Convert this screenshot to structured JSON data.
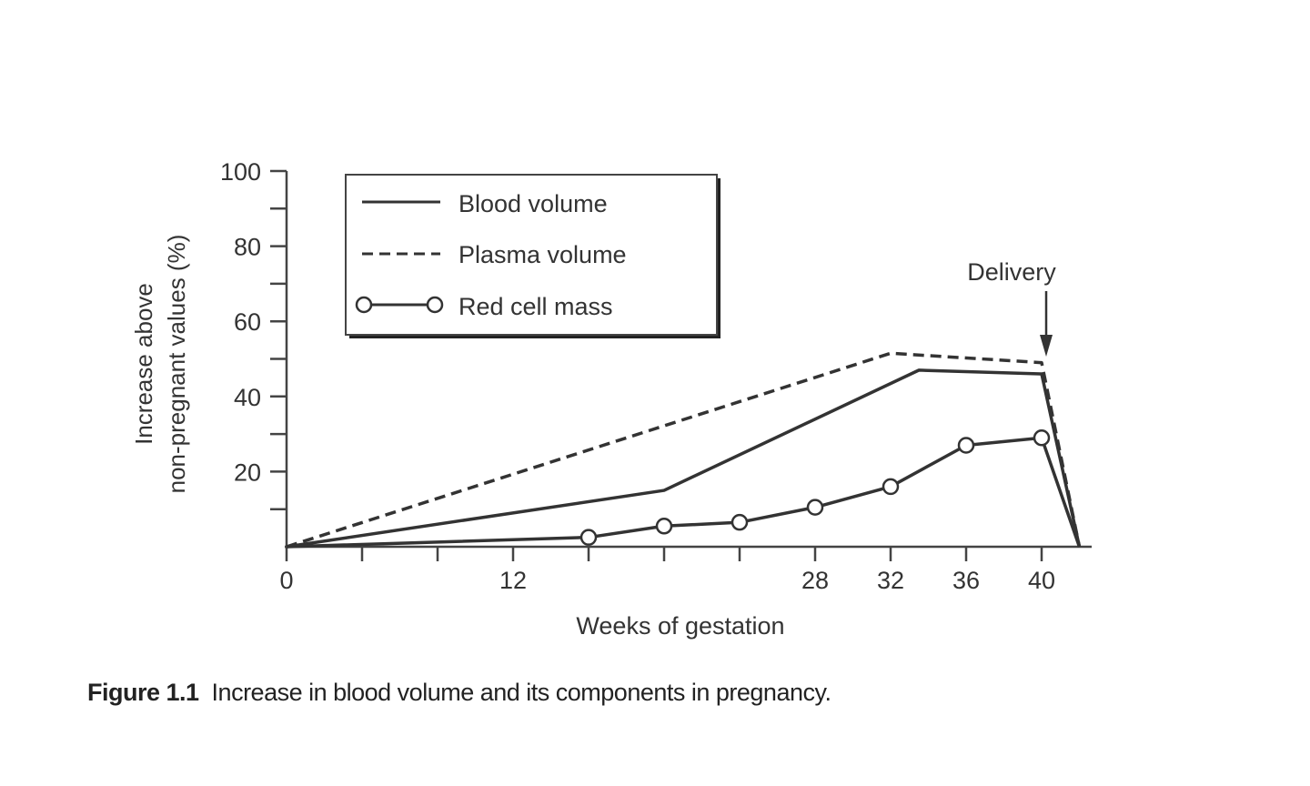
{
  "chart_data": {
    "type": "line",
    "xlabel": "Weeks of gestation",
    "ylabel_lines": [
      "Increase above",
      "non-pregnant values (%)"
    ],
    "xlim": [
      0,
      42
    ],
    "ylim": [
      0,
      100
    ],
    "x_tick_positions": [
      0,
      4,
      8,
      12,
      16,
      20,
      24,
      28,
      32,
      36,
      40
    ],
    "x_tick_labels": [
      "0",
      "12",
      "28",
      "32",
      "36",
      "40"
    ],
    "x_tick_label_values": [
      0,
      12,
      28,
      32,
      36,
      40
    ],
    "y_tick_positions": [
      10,
      20,
      30,
      40,
      50,
      60,
      70,
      80,
      90,
      100
    ],
    "y_tick_labels": [
      "20",
      "40",
      "60",
      "80",
      "100"
    ],
    "y_tick_label_values": [
      20,
      40,
      60,
      80,
      100
    ],
    "grid": false,
    "legend_position": "top-left",
    "series": [
      {
        "name": "Blood volume",
        "style": "solid",
        "markers": false,
        "x": [
          0,
          20,
          33.5,
          40,
          42
        ],
        "y": [
          0,
          15,
          47,
          46,
          0
        ]
      },
      {
        "name": "Plasma volume",
        "style": "dashed",
        "markers": false,
        "x": [
          0,
          32,
          40,
          42
        ],
        "y": [
          0,
          51.5,
          49,
          0
        ]
      },
      {
        "name": "Red cell mass",
        "style": "solid",
        "markers": true,
        "x": [
          0,
          16,
          20,
          24,
          28,
          32,
          36,
          40,
          42
        ],
        "y": [
          0,
          2.5,
          5.5,
          6.5,
          10.5,
          16,
          27,
          29,
          0
        ],
        "marker_points": [
          false,
          true,
          true,
          true,
          true,
          true,
          true,
          true,
          false
        ]
      }
    ],
    "annotations": [
      {
        "text": "Delivery",
        "x": 40,
        "arrow": true
      }
    ]
  },
  "caption": {
    "label": "Figure 1.1",
    "text": "Increase in blood volume and its components in pregnancy."
  }
}
